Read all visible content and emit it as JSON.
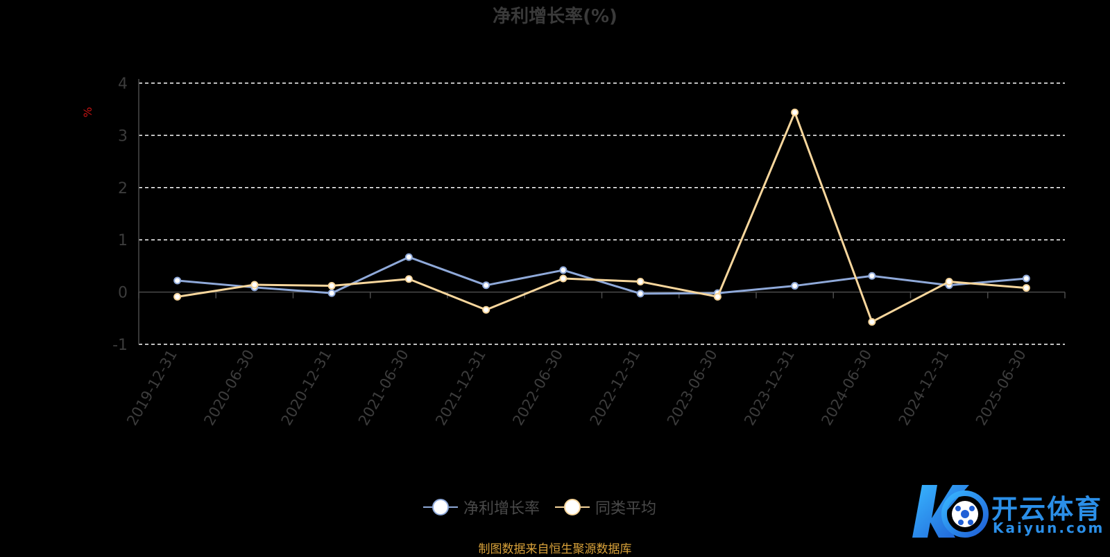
{
  "chart_data": {
    "type": "line",
    "title": "净利增长率(%)",
    "ylabel": "%",
    "categories": [
      "2019-12-31",
      "2020-06-30",
      "2020-12-31",
      "2021-06-30",
      "2021-12-31",
      "2022-06-30",
      "2022-12-31",
      "2023-06-30",
      "2023-12-31",
      "2024-06-30",
      "2024-12-31",
      "2025-06-30"
    ],
    "series": [
      {
        "name": "净利增长率",
        "color": "#8fa9d9",
        "values": [
          0.22,
          0.09,
          -0.02,
          0.67,
          0.13,
          0.42,
          -0.03,
          -0.02,
          0.12,
          0.31,
          0.13,
          0.26
        ]
      },
      {
        "name": "同类平均",
        "color": "#f7d69c",
        "values": [
          -0.09,
          0.14,
          0.12,
          0.25,
          -0.34,
          0.26,
          0.2,
          -0.09,
          3.44,
          -0.57,
          0.2,
          0.08
        ]
      }
    ],
    "ylim": [
      -1,
      4
    ],
    "yticks": [
      -1,
      0,
      1,
      2,
      3,
      4
    ],
    "grid": true,
    "grid_style": "dashed",
    "legend_position": "bottom"
  },
  "source_note": "制图数据来自恒生聚源数据库",
  "watermark": {
    "name_cn": "开云体育",
    "name_en": "Kaiyun.com"
  }
}
